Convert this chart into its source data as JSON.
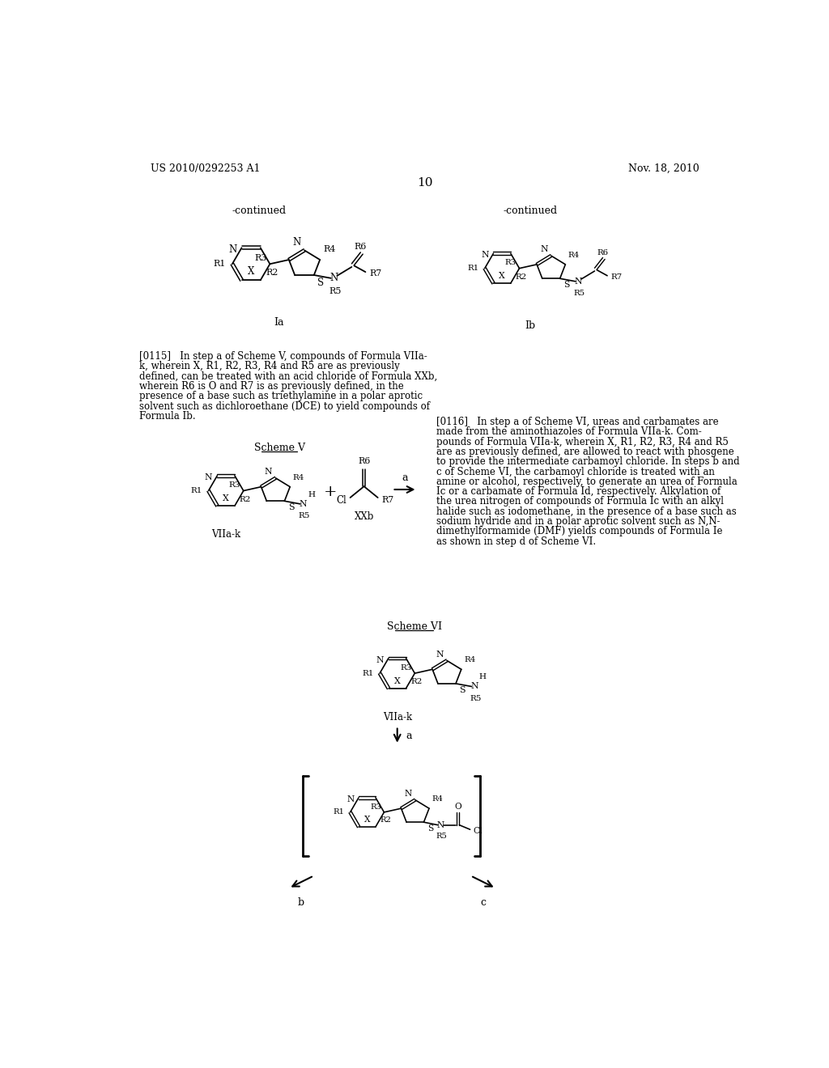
{
  "background_color": "#ffffff",
  "page_header_left": "US 2010/0292253 A1",
  "page_header_right": "Nov. 18, 2010",
  "page_number": "10"
}
